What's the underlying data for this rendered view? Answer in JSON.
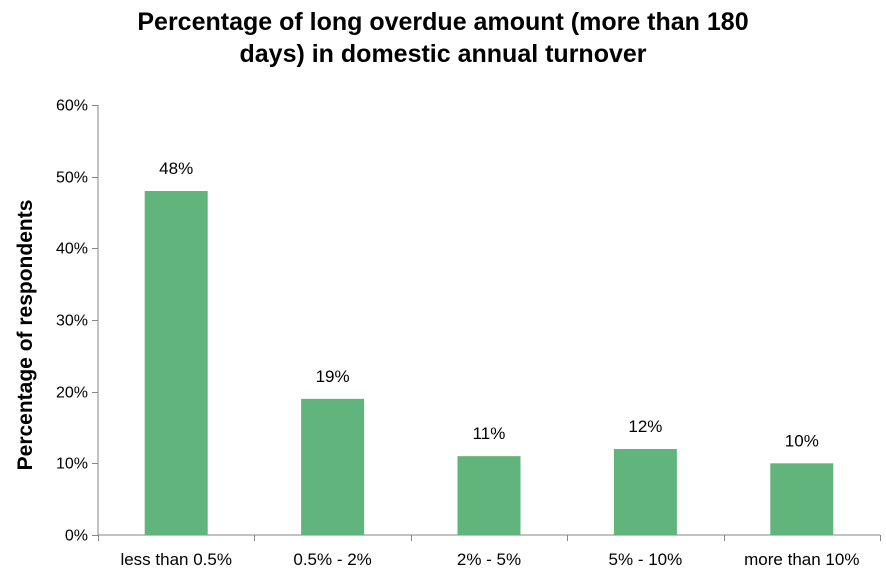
{
  "chart_data": {
    "type": "bar",
    "title_lines": [
      "Percentage of long overdue amount (more than 180",
      "days) in domestic annual turnover"
    ],
    "xlabel": "",
    "ylabel": "Percentage of respondents",
    "categories": [
      "less than 0.5%",
      "0.5% - 2%",
      "2% - 5%",
      "5% - 10%",
      "more than 10%"
    ],
    "values": [
      48,
      19,
      11,
      12,
      10
    ],
    "data_labels": [
      "48%",
      "19%",
      "11%",
      "12%",
      "10%"
    ],
    "ylim": [
      0,
      60
    ],
    "yticks": [
      0,
      10,
      20,
      30,
      40,
      50,
      60
    ],
    "ytick_labels": [
      "0%",
      "10%",
      "20%",
      "30%",
      "40%",
      "50%",
      "60%"
    ],
    "grid": false,
    "legend": "none",
    "bar_color": "#62b47d"
  }
}
